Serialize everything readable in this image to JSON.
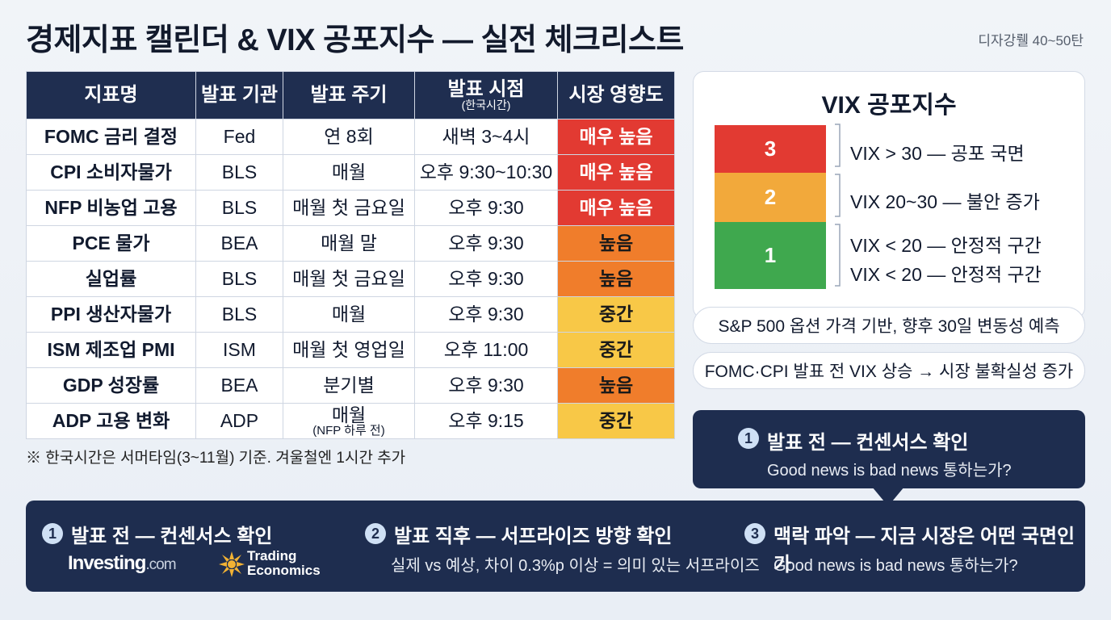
{
  "header": {
    "title": "경제지표 캘린더 & VIX 공포지수 — 실전 체크리스트",
    "tag": "디자강뤨 40~50탄"
  },
  "table": {
    "columns": [
      "지표명",
      "발표 기관",
      "발표 주기",
      "발표 시점",
      "시장 영향도"
    ],
    "column_note": "(한국시간)",
    "rows": [
      [
        "FOMC 금리 결정",
        "Fed",
        "연 8회",
        "새벽 3~4시",
        "매우 높음"
      ],
      [
        "CPI 소비자물가",
        "BLS",
        "매월",
        "오후 9:30~10:30",
        "매우 높음"
      ],
      [
        "NFP 비농업 고용",
        "BLS",
        "매월 첫 금요일",
        "오후 9:30",
        "매우 높음"
      ],
      [
        "PCE 물가",
        "BEA",
        "매월 말",
        "오후 9:30",
        "높음"
      ],
      [
        "실업률",
        "BLS",
        "매월 첫 금요일",
        "오후 9:30",
        "높음"
      ],
      [
        "PPI 생산자물가",
        "BLS",
        "매월",
        "오후 9:30",
        "중간"
      ],
      [
        "ISM 제조업 PMI",
        "ISM",
        "매월 첫 영업일",
        "오후 11:00",
        "중간"
      ],
      [
        "GDP 성장률",
        "BEA",
        "분기별",
        "오후 9:30",
        "높음"
      ],
      [
        "ADP 고용 변화",
        "ADP",
        "매월",
        "오후 9:15",
        "중간"
      ]
    ],
    "period_note": "(NFP 하루 전)",
    "row_colors": [
      "#e23a32",
      "#e23a32",
      "#e23a32",
      "#f07d2b",
      "#f07d2b",
      "#f8c847",
      "#f8c847",
      "#f07d2b",
      "#f8c847"
    ],
    "text_colors": [
      "#ffffff",
      "#ffffff",
      "#ffffff",
      "#1a1a1a",
      "#1a1a1a",
      "#1a1a1a",
      "#1a1a1a",
      "#1a1a1a",
      "#1a1a1a"
    ],
    "footnote": "※ 한국시간은 서머타임(3~11월) 기준. 겨울철엔 1시간 추가"
  },
  "vix": {
    "title": "VIX 공포지수",
    "levels": [
      {
        "label": "3",
        "color": "#e23a32",
        "lines": [
          "VIX > 30 — 공포 국면"
        ]
      },
      {
        "label": "2",
        "color": "#f2a93b",
        "lines": [
          "VIX 20~30 — 불안 증가"
        ]
      },
      {
        "label": "1",
        "color": "#3fa84e",
        "lines": [
          "VIX < 20 — 안정적 구간",
          "VIX < 20 — 안정적 구간"
        ]
      }
    ],
    "notes": [
      "S&P 500 옵션 가격 기반, 향후 30일 변동성 예측",
      "FOMC·CPI 발표 전 VIX 상승 → 시장 불확실성 증가"
    ]
  },
  "callout": {
    "number": "1",
    "title": "발표  전 — 컨센서스 확인",
    "text": "Good news is bad news 통하는가?"
  },
  "steps": [
    {
      "number": "1",
      "title": "발표 전 — 컨센서스 확인",
      "logos": {
        "investing": [
          "Investing",
          ".com"
        ],
        "trading": [
          "Trading",
          "Economics"
        ]
      }
    },
    {
      "number": "2",
      "title": "발표 직후 — 서프라이즈 방향 확인",
      "text": "실제 vs 예상, 차이 0.3%p 이상 = 의미 있는 서프라이즈"
    },
    {
      "number": "3",
      "title": "맥락 파악 — 지금 시장은 어떤 국면인가",
      "text": "Good news is bad news 통하는가?"
    }
  ]
}
